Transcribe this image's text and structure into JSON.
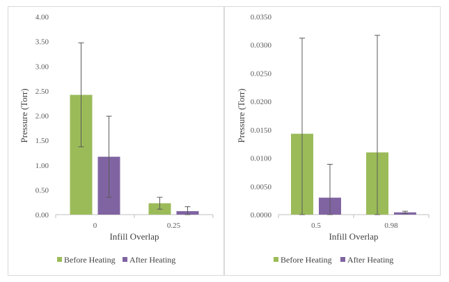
{
  "chart_data": [
    {
      "type": "bar",
      "xlabel": "Infill Overlap",
      "ylabel": "Pressure (Torr)",
      "categories": [
        "0",
        "0.25"
      ],
      "ylim": [
        0,
        4
      ],
      "yticks": [
        "0.00",
        "0.50",
        "1.00",
        "1.50",
        "2.00",
        "2.50",
        "3.00",
        "3.50",
        "4.00"
      ],
      "grid": false,
      "legend_position": "bottom",
      "series": [
        {
          "name": "Before Heating",
          "color": "#9bbb59",
          "values": [
            2.42,
            0.23
          ],
          "errors": [
            1.05,
            0.12
          ]
        },
        {
          "name": "After Heating",
          "color": "#8064a2",
          "values": [
            1.17,
            0.07
          ],
          "errors": [
            0.82,
            0.09
          ]
        }
      ]
    },
    {
      "type": "bar",
      "xlabel": "Infill Overlap",
      "ylabel": "Pressure (Torr)",
      "categories": [
        "0.5",
        "0.98"
      ],
      "ylim": [
        0,
        0.035
      ],
      "yticks": [
        "0.0000",
        "0.0050",
        "0.0100",
        "0.0150",
        "0.0200",
        "0.0250",
        "0.0300",
        "0.0350"
      ],
      "grid": false,
      "legend_position": "bottom",
      "series": [
        {
          "name": "Before Heating",
          "color": "#9bbb59",
          "values": [
            0.0143,
            0.011
          ],
          "errors": [
            0.0169,
            0.0207
          ]
        },
        {
          "name": "After Heating",
          "color": "#8064a2",
          "values": [
            0.003,
            0.0004
          ],
          "errors": [
            0.0059,
            0.0002
          ]
        }
      ]
    }
  ]
}
